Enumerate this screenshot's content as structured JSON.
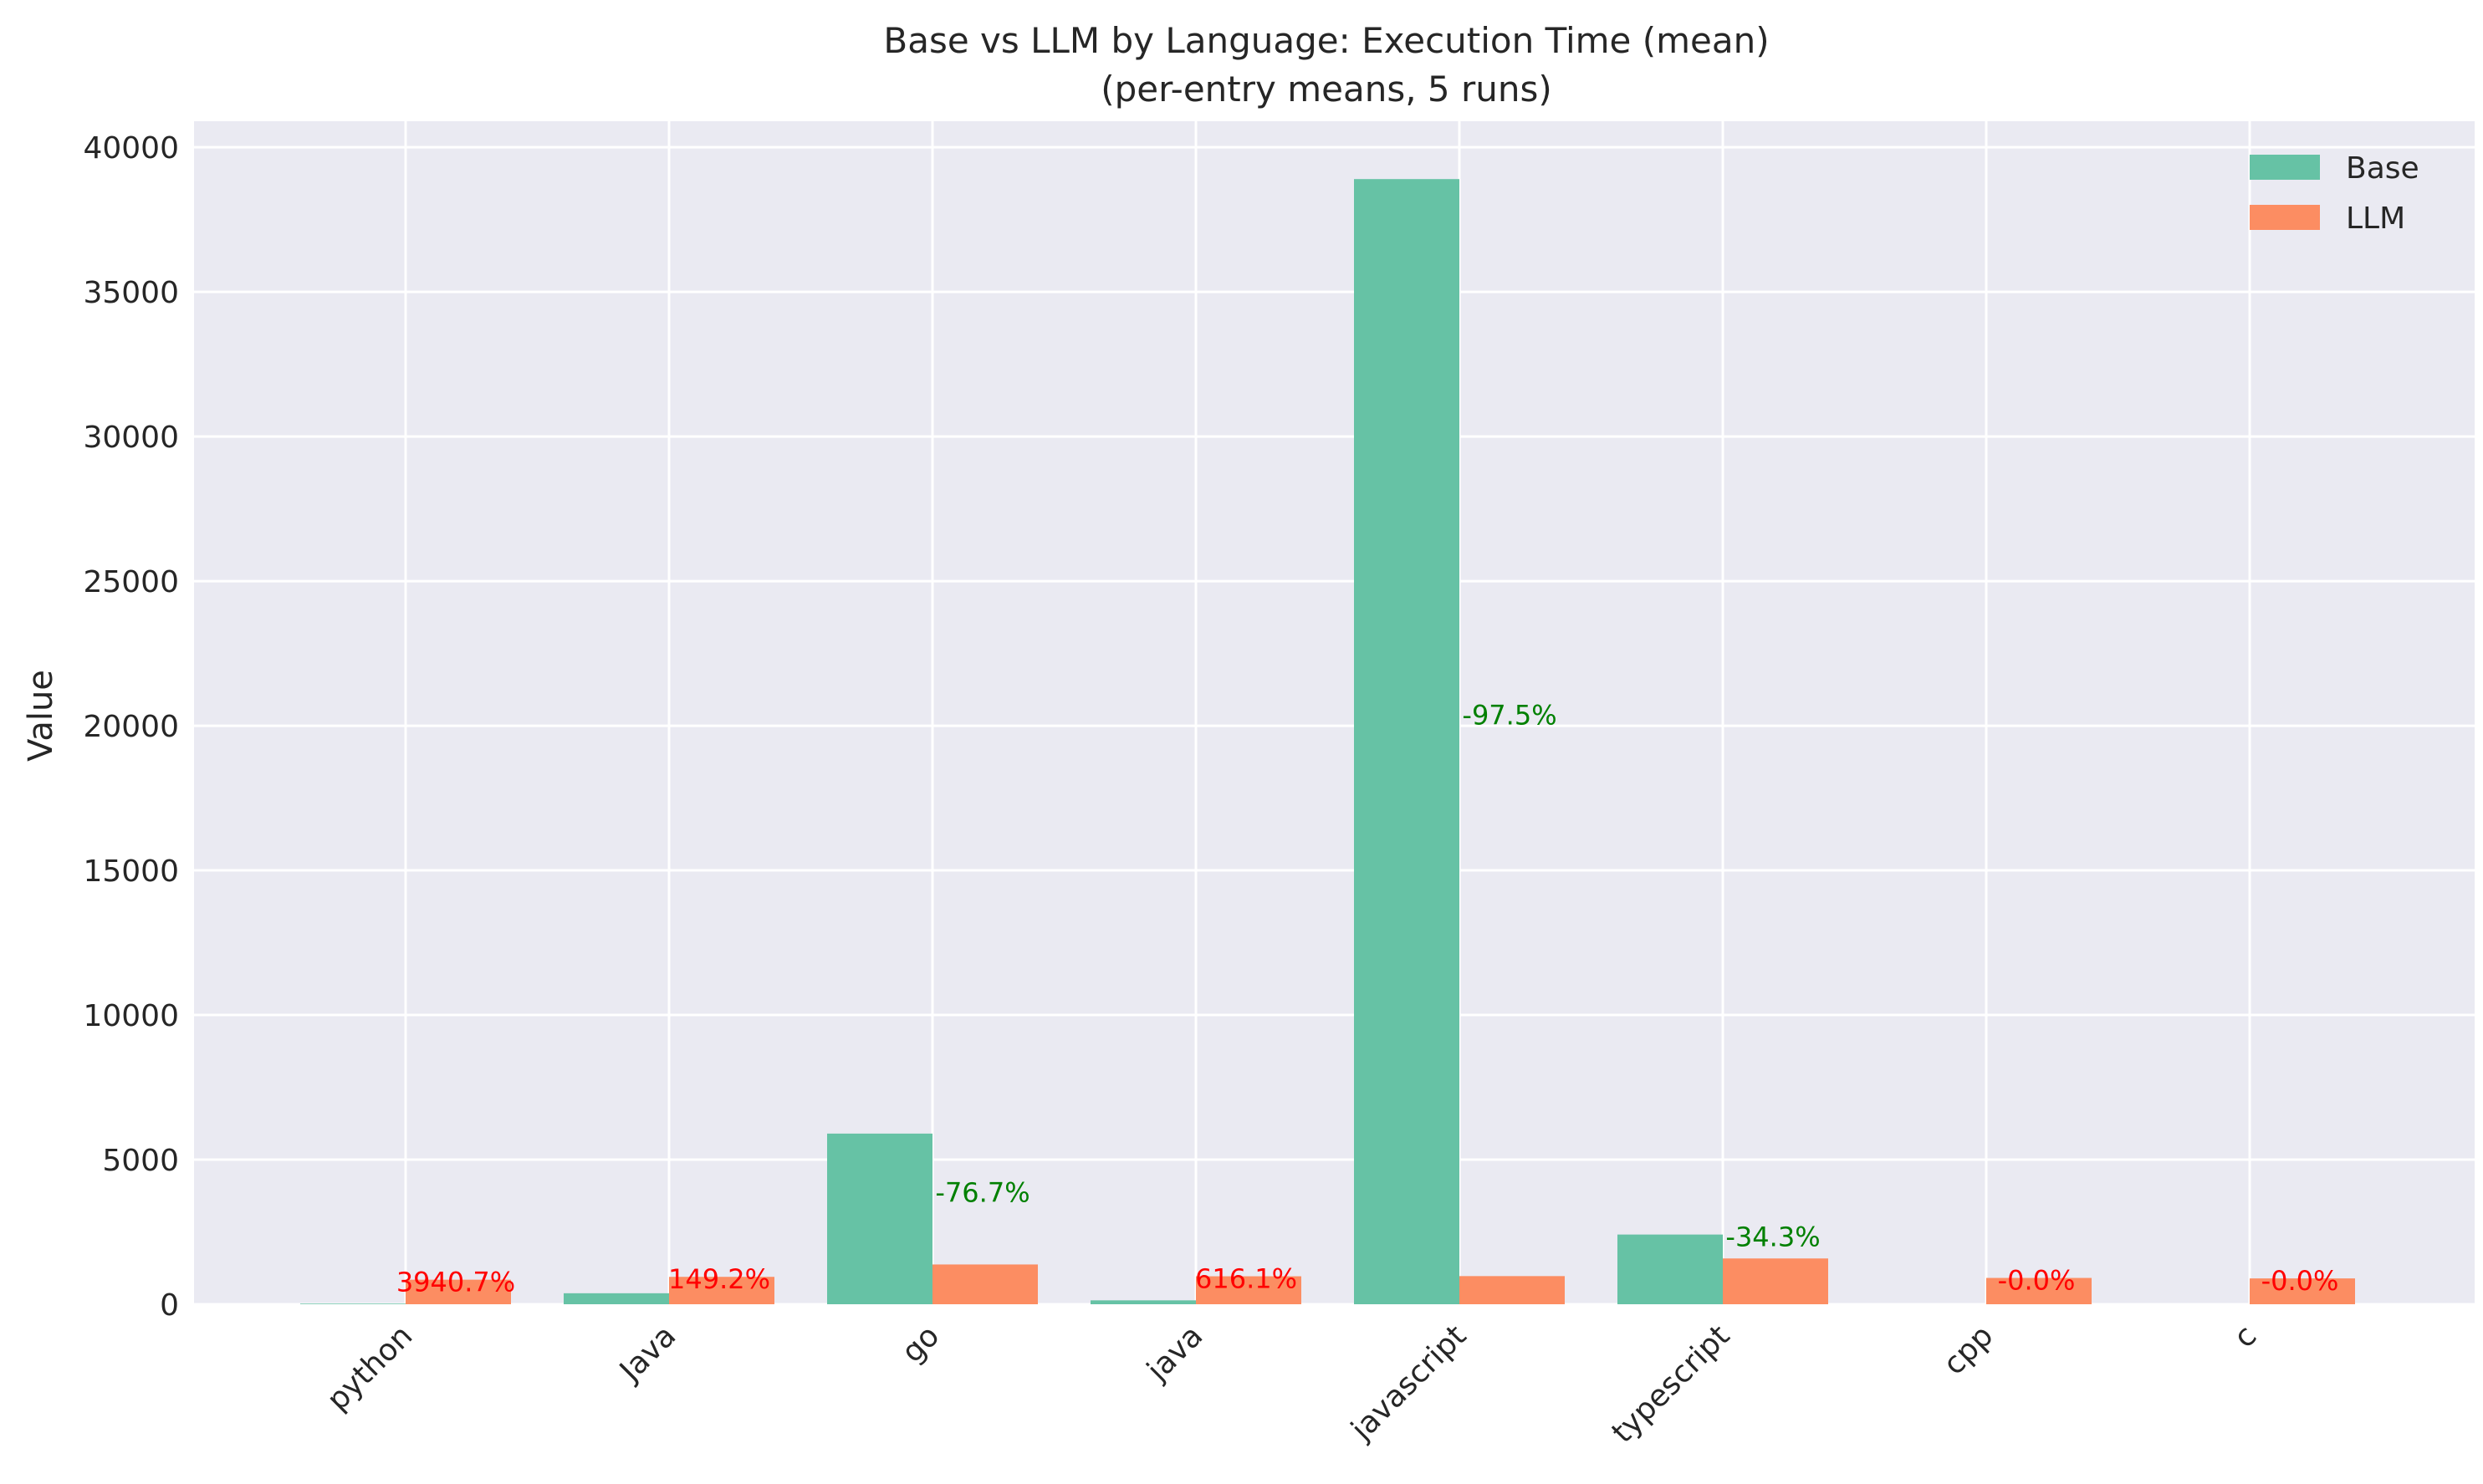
{
  "chart_data": {
    "type": "bar",
    "title": "Base vs LLM by Language: Execution Time (mean)",
    "subtitle": "(per-entry means, 5 runs)",
    "xlabel": "",
    "ylabel": "Value",
    "ylim": [
      0,
      40900
    ],
    "yticks": [
      0,
      5000,
      10000,
      15000,
      20000,
      25000,
      30000,
      35000,
      40000
    ],
    "grid": true,
    "legend_position": "top-right",
    "categories": [
      "python",
      "Java",
      "go",
      "java",
      "javascript",
      "typescript",
      "cpp",
      "c"
    ],
    "series": [
      {
        "name": "Base",
        "color": "#66c2a5",
        "values": [
          21,
          380,
          5900,
          135,
          38900,
          2410,
          0,
          0
        ]
      },
      {
        "name": "LLM",
        "color": "#fc8d62",
        "values": [
          849,
          947,
          1375,
          967,
          973,
          1583,
          910,
          893
        ]
      }
    ],
    "annotations": [
      "3940.7%",
      "149.2%",
      "-76.7%",
      "616.1%",
      "-97.5%",
      "-34.3%",
      "-0.0%",
      "-0.0%"
    ],
    "annotation_colors": [
      "#ff0000",
      "#ff0000",
      "#008000",
      "#ff0000",
      "#008000",
      "#008000",
      "#ff0000",
      "#ff0000"
    ],
    "annotation_values": [
      849,
      947,
      3950,
      967,
      20450,
      2410,
      910,
      893
    ],
    "plot_background": "#eaeaf2"
  }
}
